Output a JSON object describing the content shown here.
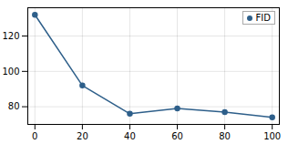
{
  "chart_data": {
    "type": "line",
    "x": [
      0,
      20,
      40,
      60,
      80,
      100
    ],
    "series": [
      {
        "name": "FID",
        "color": "#2e5f8a",
        "marker": "circle",
        "values": [
          132,
          92,
          76,
          79,
          77,
          74
        ]
      }
    ],
    "xlim": [
      -3,
      103
    ],
    "ylim": [
      70,
      136
    ],
    "xticks": [
      0,
      20,
      40,
      60,
      80,
      100
    ],
    "yticks": [
      80,
      100,
      120
    ],
    "grid": true,
    "legend": "upper right"
  }
}
